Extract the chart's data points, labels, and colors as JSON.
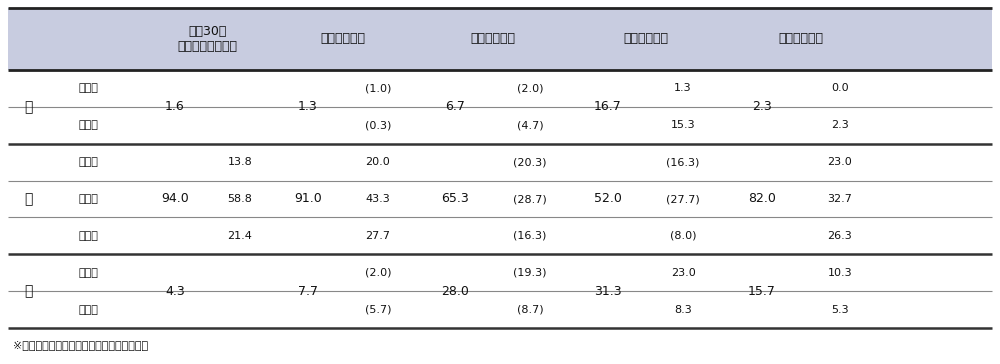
{
  "header_bg": "#c8cce0",
  "header_text_color": "#000000",
  "body_bg": "#ffffff",
  "title_note": "※（　）内は分岐後の追加質問での選択率。",
  "col_headers": [
    "平成30年\n国民生活世論調査",
    "上１中３下１",
    "上１中１下１",
    "上２中１下２",
    "上２中３下２"
  ],
  "row_group_labels": [
    "上",
    "中",
    "下"
  ],
  "sub_row_labels_ue": [
    "上の上",
    "上の下"
  ],
  "sub_row_labels_chuu": [
    "中の上",
    "中の中",
    "中の下"
  ],
  "sub_row_labels_shita": [
    "下の上",
    "下の下"
  ],
  "data_ue_total": [
    "1.6",
    "1.3",
    "6.7",
    "16.7",
    "2.3"
  ],
  "data_ue_upper": [
    "",
    "(1.0)",
    "(2.0)",
    "1.3",
    "0.0"
  ],
  "data_ue_lower": [
    "",
    "(0.3)",
    "(4.7)",
    "15.3",
    "2.3"
  ],
  "data_chuu_total": [
    "94.0",
    "91.0",
    "65.3",
    "52.0",
    "82.0"
  ],
  "data_chuu_upper": [
    "13.8",
    "20.0",
    "(20.3)",
    "(16.3)",
    "23.0"
  ],
  "data_chuu_mid": [
    "58.8",
    "43.3",
    "(28.7)",
    "(27.7)",
    "32.7"
  ],
  "data_chuu_lower": [
    "21.4",
    "27.7",
    "(16.3)",
    "(8.0)",
    "26.3"
  ],
  "data_shita_total": [
    "4.3",
    "7.7",
    "28.0",
    "31.3",
    "15.7"
  ],
  "data_shita_upper": [
    "",
    "(2.0)",
    "(19.3)",
    "23.0",
    "10.3"
  ],
  "data_shita_lower": [
    "",
    "(5.7)",
    "(8.7)",
    "8.3",
    "5.3"
  ],
  "line_color_thick": "#333333",
  "line_color_mid": "#555555",
  "line_color_thin": "#888888",
  "fs_header": 9,
  "fs_body": 9,
  "fs_small": 8,
  "fs_note": 8
}
